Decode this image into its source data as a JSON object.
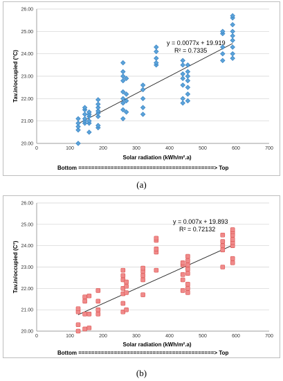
{
  "captions": {
    "a": "(a)",
    "b": "(b)"
  },
  "chart_data": [
    {
      "type": "scatter",
      "panel": "a",
      "marker": "diamond",
      "color": "#5ba3d9",
      "stroke": "#2f7bbf",
      "xlabel": "Solar radiation (kWh/m².a)",
      "ylabel": "Tav.in/occupied (°C)",
      "xlim": [
        0,
        700
      ],
      "ylim": [
        20,
        26
      ],
      "x_ticks": [
        "0",
        "100",
        "200",
        "300",
        "400",
        "500",
        "600",
        "700"
      ],
      "y_ticks": [
        "20.00",
        "21.00",
        "22.00",
        "23.00",
        "24.00",
        "25.00",
        "26.00"
      ],
      "grid": "horizontal",
      "trendline": {
        "slope": 0.0077,
        "intercept": 19.919,
        "x_range": [
          125,
          590
        ]
      },
      "equation": "y = 0.0077x + 19.919",
      "r2": "R² = 0.7335",
      "footnote": "Bottom  ==========================================> Top",
      "points": [
        [
          125,
          20.0
        ],
        [
          125,
          20.6
        ],
        [
          125,
          20.75
        ],
        [
          125,
          20.9
        ],
        [
          125,
          21.1
        ],
        [
          145,
          20.9
        ],
        [
          145,
          21.0
        ],
        [
          145,
          21.1
        ],
        [
          145,
          21.3
        ],
        [
          145,
          21.5
        ],
        [
          145,
          21.6
        ],
        [
          158,
          20.5
        ],
        [
          158,
          20.9
        ],
        [
          158,
          21.0
        ],
        [
          158,
          21.2
        ],
        [
          158,
          21.3
        ],
        [
          158,
          21.4
        ],
        [
          185,
          20.7
        ],
        [
          185,
          20.8
        ],
        [
          185,
          21.2
        ],
        [
          185,
          21.35
        ],
        [
          185,
          21.45
        ],
        [
          185,
          21.6
        ],
        [
          185,
          21.75
        ],
        [
          185,
          21.95
        ],
        [
          260,
          21.1
        ],
        [
          260,
          21.5
        ],
        [
          260,
          21.8
        ],
        [
          260,
          22.0
        ],
        [
          260,
          22.3
        ],
        [
          260,
          22.8
        ],
        [
          260,
          23.0
        ],
        [
          260,
          23.2
        ],
        [
          260,
          23.6
        ],
        [
          270,
          21.4
        ],
        [
          270,
          21.9
        ],
        [
          270,
          22.2
        ],
        [
          270,
          22.9
        ],
        [
          320,
          21.3
        ],
        [
          320,
          21.6
        ],
        [
          320,
          22.0
        ],
        [
          320,
          22.4
        ],
        [
          320,
          22.6
        ],
        [
          360,
          23.5
        ],
        [
          360,
          23.6
        ],
        [
          360,
          23.8
        ],
        [
          360,
          24.1
        ],
        [
          360,
          24.3
        ],
        [
          440,
          21.8
        ],
        [
          440,
          22.0
        ],
        [
          440,
          22.6
        ],
        [
          440,
          22.9
        ],
        [
          440,
          23.1
        ],
        [
          440,
          23.5
        ],
        [
          440,
          23.7
        ],
        [
          455,
          21.9
        ],
        [
          455,
          22.2
        ],
        [
          455,
          22.5
        ],
        [
          455,
          22.8
        ],
        [
          455,
          23.0
        ],
        [
          455,
          23.2
        ],
        [
          455,
          23.5
        ],
        [
          560,
          23.7
        ],
        [
          560,
          24.0
        ],
        [
          560,
          24.3
        ],
        [
          560,
          24.9
        ],
        [
          560,
          25.0
        ],
        [
          590,
          23.8
        ],
        [
          590,
          24.0
        ],
        [
          590,
          24.3
        ],
        [
          590,
          24.6
        ],
        [
          590,
          24.8
        ],
        [
          590,
          25.0
        ],
        [
          590,
          25.3
        ],
        [
          590,
          25.6
        ],
        [
          590,
          25.7
        ]
      ]
    },
    {
      "type": "scatter",
      "panel": "b",
      "marker": "square",
      "color": "#f08a8a",
      "stroke": "#d9534f",
      "xlabel": "Solar radiation (kWh/m².a)",
      "ylabel": "Tav.in/occupied (C°)",
      "xlim": [
        0,
        700
      ],
      "ylim": [
        20,
        26
      ],
      "x_ticks": [
        "0",
        "100",
        "200",
        "300",
        "400",
        "500",
        "600",
        "700"
      ],
      "y_ticks": [
        "20.00",
        "21.00",
        "22.00",
        "23.00",
        "24.00",
        "25.00",
        "26.00"
      ],
      "grid": "horizontal",
      "trendline": {
        "slope": 0.007,
        "intercept": 19.893,
        "x_range": [
          125,
          590
        ]
      },
      "equation": "y = 0.007x + 19.893",
      "r2": "R² = 0.72132",
      "footnote": "Bottom  ==========================================> Top",
      "points": [
        [
          125,
          20.0
        ],
        [
          125,
          20.3
        ],
        [
          125,
          20.9
        ],
        [
          125,
          21.05
        ],
        [
          145,
          20.1
        ],
        [
          145,
          20.8
        ],
        [
          145,
          21.4
        ],
        [
          145,
          21.6
        ],
        [
          158,
          20.15
        ],
        [
          158,
          20.8
        ],
        [
          158,
          21.65
        ],
        [
          185,
          20.8
        ],
        [
          185,
          21.0
        ],
        [
          185,
          21.4
        ],
        [
          185,
          21.9
        ],
        [
          260,
          20.9
        ],
        [
          260,
          21.3
        ],
        [
          260,
          21.75
        ],
        [
          260,
          22.0
        ],
        [
          260,
          22.4
        ],
        [
          260,
          22.6
        ],
        [
          260,
          22.85
        ],
        [
          270,
          21.0
        ],
        [
          270,
          21.8
        ],
        [
          270,
          22.1
        ],
        [
          270,
          22.3
        ],
        [
          320,
          21.7
        ],
        [
          320,
          22.4
        ],
        [
          320,
          22.6
        ],
        [
          320,
          22.8
        ],
        [
          320,
          22.95
        ],
        [
          360,
          22.85
        ],
        [
          360,
          23.7
        ],
        [
          360,
          23.85
        ],
        [
          360,
          24.25
        ],
        [
          360,
          24.35
        ],
        [
          440,
          21.9
        ],
        [
          440,
          22.4
        ],
        [
          440,
          22.65
        ],
        [
          440,
          23.1
        ],
        [
          440,
          23.2
        ],
        [
          455,
          21.8
        ],
        [
          455,
          22.0
        ],
        [
          455,
          22.2
        ],
        [
          455,
          22.7
        ],
        [
          455,
          22.9
        ],
        [
          455,
          23.1
        ],
        [
          455,
          23.3
        ],
        [
          455,
          23.5
        ],
        [
          560,
          23.0
        ],
        [
          560,
          23.8
        ],
        [
          560,
          24.0
        ],
        [
          560,
          24.2
        ],
        [
          560,
          24.5
        ],
        [
          590,
          23.2
        ],
        [
          590,
          23.4
        ],
        [
          590,
          24.0
        ],
        [
          590,
          24.15
        ],
        [
          590,
          24.3
        ],
        [
          590,
          24.5
        ],
        [
          590,
          24.65
        ],
        [
          590,
          24.75
        ]
      ]
    }
  ]
}
